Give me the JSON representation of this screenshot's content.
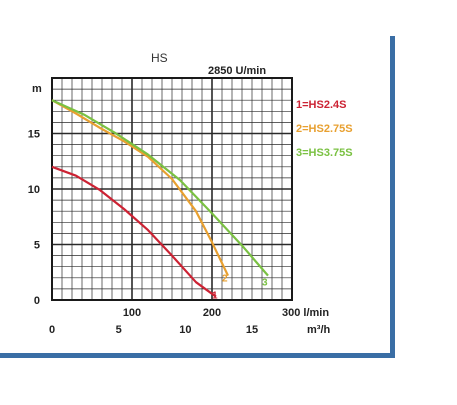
{
  "chart_data": {
    "type": "line",
    "title": "HS",
    "subtitle": "2850 U/min",
    "ylabel": "m",
    "x_units": [
      "l/min",
      "m³/h"
    ],
    "xlim": [
      0,
      300
    ],
    "ylim": [
      0,
      20
    ],
    "grid": true,
    "x_ticks_primary": [
      {
        "value": 100,
        "label": "100"
      },
      {
        "value": 200,
        "label": "200"
      },
      {
        "value": 300,
        "label": "300 l/min"
      }
    ],
    "x_ticks_secondary": [
      {
        "value": 0,
        "label": "0"
      },
      {
        "value": 83.33,
        "label": "5"
      },
      {
        "value": 166.67,
        "label": "10"
      },
      {
        "value": 250,
        "label": "15"
      },
      {
        "value": 333.33,
        "label": "m³/h"
      }
    ],
    "y_ticks": [
      {
        "value": 0,
        "label": "0"
      },
      {
        "value": 5,
        "label": "5"
      },
      {
        "value": 10,
        "label": "10"
      },
      {
        "value": 15,
        "label": "15"
      }
    ],
    "legend_position": "right",
    "series": [
      {
        "name": "1=HS2.4S",
        "curve_label": "1",
        "color": "#cc2233",
        "points": [
          [
            0,
            12
          ],
          [
            30,
            11.2
          ],
          [
            60,
            9.9
          ],
          [
            90,
            8.2
          ],
          [
            120,
            6.3
          ],
          [
            150,
            4.0
          ],
          [
            180,
            1.6
          ],
          [
            205,
            0.3
          ]
        ]
      },
      {
        "name": "2=HS2.75S",
        "curve_label": "2",
        "color": "#e8a030",
        "points": [
          [
            0,
            18
          ],
          [
            30,
            16.8
          ],
          [
            60,
            15.5
          ],
          [
            90,
            14.3
          ],
          [
            120,
            12.9
          ],
          [
            150,
            10.9
          ],
          [
            180,
            8.0
          ],
          [
            200,
            5.2
          ],
          [
            220,
            2.2
          ]
        ]
      },
      {
        "name": "3=HS3.75S",
        "curve_label": "3",
        "color": "#7ac142",
        "points": [
          [
            0,
            18
          ],
          [
            40,
            16.7
          ],
          [
            80,
            15.0
          ],
          [
            120,
            13.1
          ],
          [
            160,
            10.8
          ],
          [
            200,
            7.8
          ],
          [
            240,
            4.7
          ],
          [
            270,
            2.2
          ]
        ]
      }
    ]
  }
}
